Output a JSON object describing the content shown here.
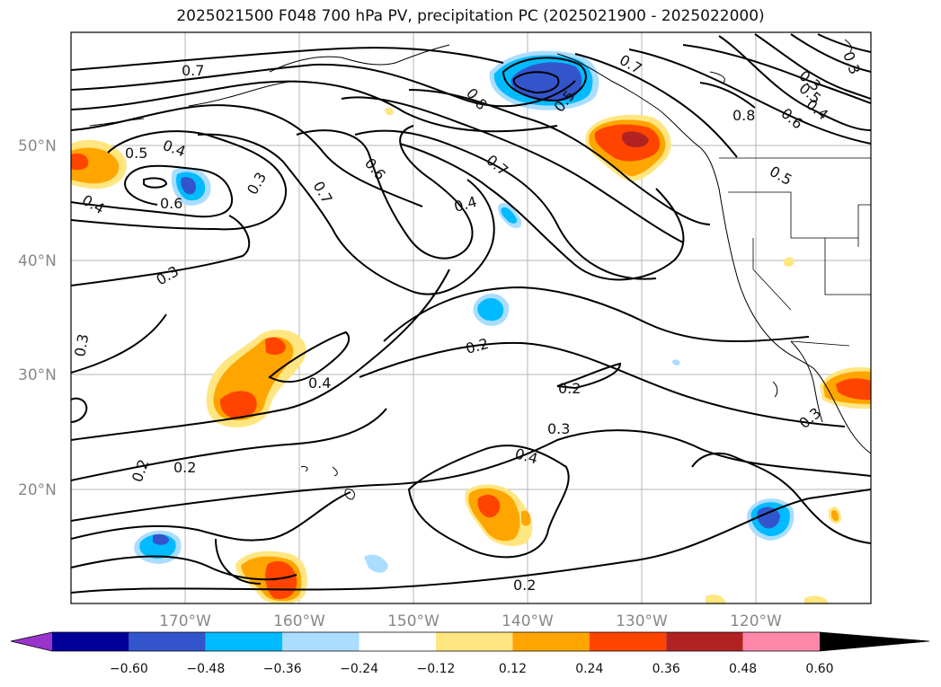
{
  "title": "2025021500 F048 700 hPa PV, precipitation PC (2025021900 - 2025022000)",
  "lat_labels": [
    "50°N",
    "40°N",
    "30°N",
    "20°N"
  ],
  "lon_labels": [
    "170°W",
    "160°W",
    "150°W",
    "140°W",
    "130°W",
    "120°W"
  ],
  "contour_labels": [
    "0.7",
    "0.5",
    "0.4",
    "0.3",
    "0.6",
    "0.4",
    "0.3",
    "0.7",
    "0.6",
    "0.7",
    "0.4",
    "0.8",
    "0.5",
    "0.7",
    "0.8",
    "0.3",
    "0.5",
    "0.4",
    "0.6",
    "0.3",
    "0.5",
    "0.3",
    "0.2",
    "0.4",
    "0.2",
    "0.3",
    "0.4",
    "0.2",
    "0.2",
    "0.2",
    "0.3"
  ],
  "colorbar": {
    "ticks": [
      "−0.60",
      "−0.48",
      "−0.36",
      "−0.24",
      "−0.12",
      "0.12",
      "0.24",
      "0.36",
      "0.48",
      "0.60"
    ],
    "colors": [
      "#9933cc",
      "#000099",
      "#3355cc",
      "#00bbff",
      "#aaddff",
      "#ffffff",
      "#ffe680",
      "#ffa500",
      "#ff4400",
      "#b22222",
      "#ff88aa"
    ]
  }
}
